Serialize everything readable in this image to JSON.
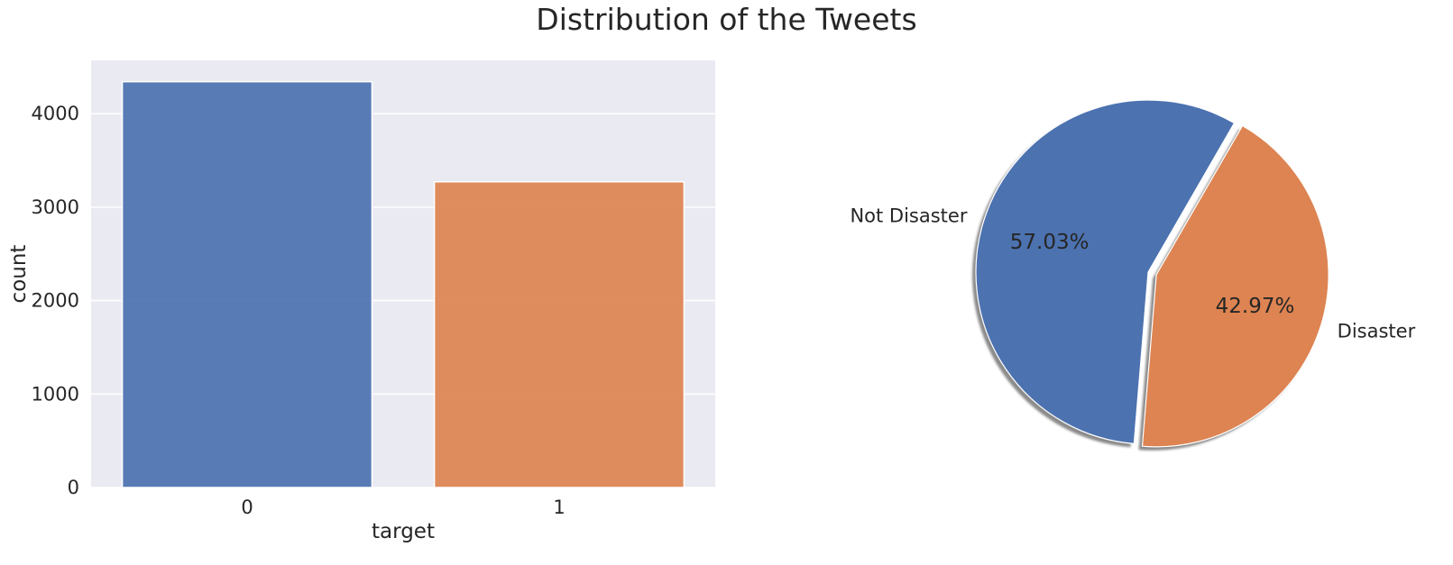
{
  "title": "Distribution of the Tweets",
  "colors": {
    "blue": "#4c72b0",
    "orange": "#dd8452",
    "axes_bg": "#eaeaf2",
    "grid": "#ffffff"
  },
  "chart_data": [
    {
      "type": "bar",
      "categories": [
        "0",
        "1"
      ],
      "values": [
        4342,
        3271
      ],
      "xlabel": "target",
      "ylabel": "count",
      "ylim": [
        0,
        4570
      ],
      "yticks": [
        0,
        1000,
        2000,
        3000,
        4000
      ],
      "grid": true,
      "colors": [
        "#4c72b0",
        "#dd8452"
      ]
    },
    {
      "type": "pie",
      "labels": [
        "Not Disaster",
        "Disaster"
      ],
      "values": [
        57.03,
        42.97
      ],
      "autopct": [
        "57.03%",
        "42.97%"
      ],
      "explode": [
        0,
        0.05
      ],
      "shadow": true,
      "startangle": 60,
      "colors": [
        "#4c72b0",
        "#dd8452"
      ]
    }
  ]
}
